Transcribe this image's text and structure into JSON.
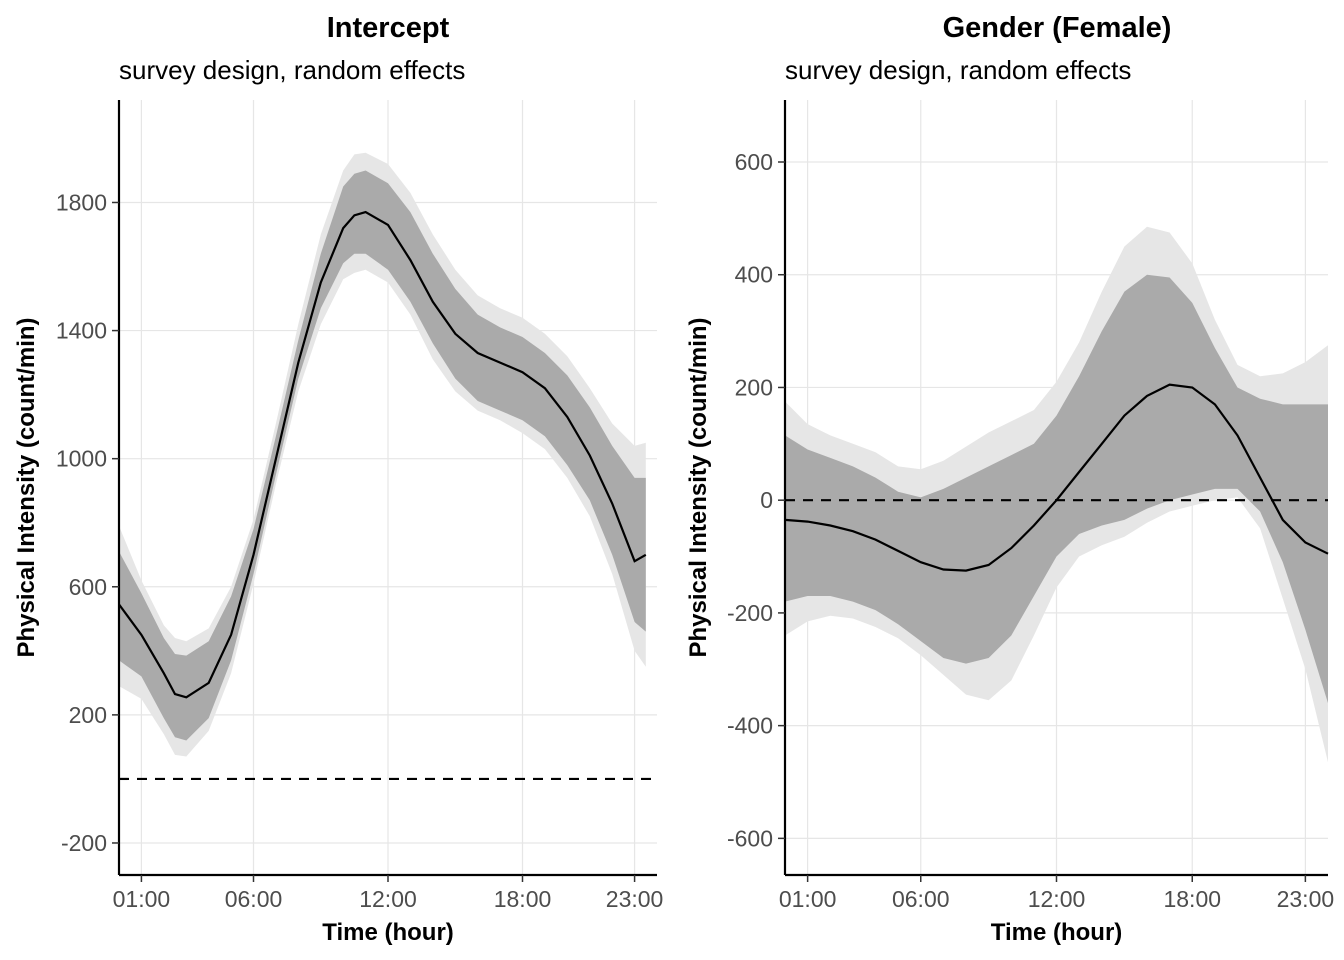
{
  "chart_data": [
    {
      "type": "line",
      "title": "Intercept",
      "subtitle": "survey design, random effects",
      "xlabel": "Time (hour)",
      "ylabel": "Physical Intensity (count/min)",
      "xlim": [
        0.0,
        24.0
      ],
      "ylim": [
        -300,
        2120
      ],
      "xticks": [
        {
          "value": 1,
          "label": "01:00"
        },
        {
          "value": 6,
          "label": "06:00"
        },
        {
          "value": 12,
          "label": "12:00"
        },
        {
          "value": 18,
          "label": "18:00"
        },
        {
          "value": 23,
          "label": "23:00"
        }
      ],
      "yticks": [
        {
          "value": -200,
          "label": "-200"
        },
        {
          "value": 200,
          "label": "200"
        },
        {
          "value": 600,
          "label": "600"
        },
        {
          "value": 1000,
          "label": "1000"
        },
        {
          "value": 1400,
          "label": "1400"
        },
        {
          "value": 1800,
          "label": "1800"
        }
      ],
      "reference_line": {
        "y": 0,
        "style": "dashed",
        "color": "#000000"
      },
      "x": [
        0.0,
        1.0,
        2.0,
        2.5,
        3.0,
        4.0,
        5.0,
        6.0,
        7.0,
        8.0,
        9.0,
        10.0,
        10.5,
        11.0,
        12.0,
        13.0,
        14.0,
        15.0,
        16.0,
        17.0,
        18.0,
        19.0,
        20.0,
        21.0,
        22.0,
        23.0,
        23.5
      ],
      "mean": [
        545,
        450,
        330,
        265,
        255,
        300,
        450,
        700,
        1000,
        1300,
        1550,
        1720,
        1760,
        1770,
        1730,
        1620,
        1490,
        1390,
        1330,
        1300,
        1270,
        1220,
        1130,
        1010,
        860,
        680,
        700
      ],
      "inner_band": {
        "lower": [
          370,
          320,
          190,
          130,
          120,
          190,
          370,
          640,
          950,
          1250,
          1470,
          1610,
          1640,
          1640,
          1590,
          1490,
          1360,
          1250,
          1180,
          1150,
          1120,
          1070,
          980,
          870,
          700,
          490,
          460
        ],
        "upper": [
          710,
          580,
          440,
          390,
          385,
          430,
          570,
          780,
          1070,
          1370,
          1640,
          1850,
          1890,
          1900,
          1860,
          1770,
          1640,
          1530,
          1450,
          1410,
          1380,
          1330,
          1260,
          1160,
          1040,
          940,
          940
        ],
        "color": "#aaaaaa"
      },
      "outer_band": {
        "lower": [
          290,
          250,
          140,
          75,
          70,
          150,
          330,
          610,
          920,
          1210,
          1420,
          1560,
          1580,
          1590,
          1550,
          1450,
          1310,
          1210,
          1150,
          1120,
          1080,
          1030,
          940,
          820,
          640,
          400,
          350
        ],
        "upper": [
          790,
          620,
          480,
          440,
          430,
          470,
          600,
          810,
          1110,
          1420,
          1700,
          1900,
          1950,
          1955,
          1920,
          1830,
          1700,
          1590,
          1510,
          1470,
          1440,
          1390,
          1320,
          1220,
          1110,
          1040,
          1050
        ],
        "color": "#e6e6e6"
      }
    },
    {
      "type": "line",
      "title": "Gender (Female)",
      "subtitle": "survey design, random effects",
      "xlabel": "Time (hour)",
      "ylabel": "Physical Intensity (count/min)",
      "xlim": [
        0.0,
        24.0
      ],
      "ylim": [
        -665,
        710
      ],
      "xticks": [
        {
          "value": 1,
          "label": "01:00"
        },
        {
          "value": 6,
          "label": "06:00"
        },
        {
          "value": 12,
          "label": "12:00"
        },
        {
          "value": 18,
          "label": "18:00"
        },
        {
          "value": 23,
          "label": "23:00"
        }
      ],
      "yticks": [
        {
          "value": -600,
          "label": "-600"
        },
        {
          "value": -400,
          "label": "-400"
        },
        {
          "value": -200,
          "label": "-200"
        },
        {
          "value": 0,
          "label": "0"
        },
        {
          "value": 200,
          "label": "200"
        },
        {
          "value": 400,
          "label": "400"
        },
        {
          "value": 600,
          "label": "600"
        }
      ],
      "reference_line": {
        "y": 0,
        "style": "dashed",
        "color": "#000000"
      },
      "x": [
        0.0,
        1.0,
        2.0,
        3.0,
        4.0,
        5.0,
        6.0,
        7.0,
        8.0,
        9.0,
        10.0,
        11.0,
        12.0,
        13.0,
        14.0,
        15.0,
        16.0,
        17.0,
        18.0,
        19.0,
        20.0,
        21.0,
        22.0,
        23.0,
        24.0
      ],
      "mean": [
        -35,
        -38,
        -45,
        -55,
        -70,
        -90,
        -110,
        -123,
        -125,
        -115,
        -85,
        -45,
        0,
        50,
        100,
        150,
        185,
        205,
        200,
        170,
        115,
        40,
        -35,
        -75,
        -95
      ],
      "inner_band": {
        "lower": [
          -180,
          -170,
          -170,
          -180,
          -195,
          -220,
          -250,
          -280,
          -290,
          -280,
          -240,
          -170,
          -100,
          -60,
          -45,
          -35,
          -15,
          0,
          10,
          20,
          20,
          -20,
          -110,
          -230,
          -360
        ],
        "upper": [
          115,
          90,
          75,
          60,
          40,
          15,
          5,
          20,
          40,
          60,
          80,
          100,
          150,
          220,
          300,
          370,
          400,
          395,
          350,
          270,
          200,
          180,
          170,
          170,
          170
        ],
        "color": "#aaaaaa"
      },
      "outer_band": {
        "lower": [
          -240,
          -215,
          -205,
          -210,
          -225,
          -245,
          -275,
          -310,
          -345,
          -355,
          -320,
          -240,
          -155,
          -100,
          -80,
          -65,
          -40,
          -20,
          -10,
          0,
          5,
          -50,
          -175,
          -300,
          -465
        ],
        "upper": [
          175,
          135,
          115,
          100,
          85,
          60,
          55,
          70,
          95,
          120,
          140,
          160,
          210,
          280,
          370,
          450,
          485,
          475,
          420,
          320,
          240,
          220,
          225,
          245,
          275
        ],
        "color": "#e6e6e6"
      }
    }
  ]
}
